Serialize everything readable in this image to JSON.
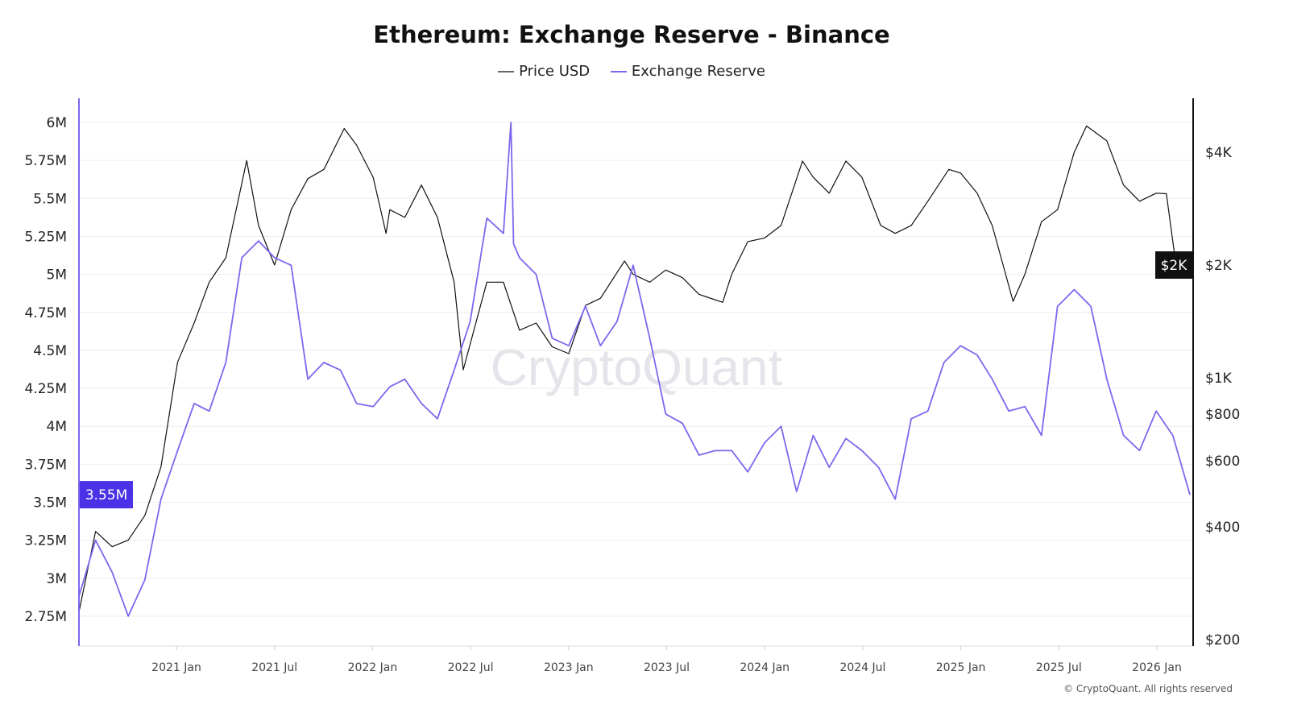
{
  "chart_data": {
    "type": "line",
    "title": "Ethereum: Exchange Reserve - Binance",
    "legend_position": "top-center",
    "grid": true,
    "x_tick_labels": [
      "2021 Jan",
      "2021 Jul",
      "2022 Jan",
      "2022 Jul",
      "2023 Jan",
      "2023 Jul",
      "2024 Jan",
      "2024 Jul",
      "2025 Jan",
      "2025 Jul",
      "2026 Jan"
    ],
    "x_range": [
      "2020-07-01",
      "2026-03-05"
    ],
    "y_left": {
      "ticks": [
        "6M",
        "5.75M",
        "5.5M",
        "5.25M",
        "5M",
        "4.75M",
        "4.5M",
        "4.25M",
        "4M",
        "3.75M",
        "3.5M",
        "3.25M",
        "3M",
        "2.75M"
      ],
      "range": [
        2.57,
        6.16
      ],
      "unit": "M"
    },
    "y_right": {
      "scale": "log",
      "ticks": [
        "$4K",
        "$2K",
        "$1K",
        "$800",
        "$600",
        "$400",
        "$200"
      ],
      "tick_values": [
        4000,
        2000,
        1000,
        800,
        600,
        400,
        200
      ]
    },
    "current_labels": {
      "reserve": "3.55M",
      "price": "$2K"
    },
    "series": [
      {
        "name": "Price USD",
        "axis": "right",
        "color": "#111111",
        "x": [
          "2020-07-01",
          "2020-08-01",
          "2020-09-01",
          "2020-10-01",
          "2020-11-01",
          "2020-12-01",
          "2021-01-01",
          "2021-02-01",
          "2021-03-01",
          "2021-04-01",
          "2021-05-10",
          "2021-06-01",
          "2021-07-01",
          "2021-08-01",
          "2021-09-01",
          "2021-10-01",
          "2021-11-08",
          "2021-12-01",
          "2022-01-01",
          "2022-01-25",
          "2022-02-01",
          "2022-03-01",
          "2022-04-01",
          "2022-05-01",
          "2022-06-01",
          "2022-06-18",
          "2022-08-01",
          "2022-09-01",
          "2022-10-01",
          "2022-11-01",
          "2022-12-01",
          "2023-01-01",
          "2023-02-01",
          "2023-03-01",
          "2023-04-15",
          "2023-05-01",
          "2023-06-01",
          "2023-07-01",
          "2023-08-01",
          "2023-09-01",
          "2023-10-15",
          "2023-11-01",
          "2023-12-01",
          "2024-01-01",
          "2024-02-01",
          "2024-03-12",
          "2024-04-01",
          "2024-05-01",
          "2024-06-01",
          "2024-07-01",
          "2024-08-05",
          "2024-09-01",
          "2024-10-01",
          "2024-11-01",
          "2024-12-10",
          "2025-01-01",
          "2025-02-01",
          "2025-03-01",
          "2025-04-09",
          "2025-05-01",
          "2025-06-01",
          "2025-07-01",
          "2025-08-01",
          "2025-08-24",
          "2025-10-01",
          "2025-11-01",
          "2025-12-01",
          "2026-01-01",
          "2026-01-20",
          "2026-02-05",
          "2026-03-05"
        ],
        "y": [
          237,
          389,
          354,
          369,
          429,
          578,
          1100,
          1400,
          1800,
          2090,
          3800,
          2550,
          2000,
          2810,
          3400,
          3600,
          4630,
          4180,
          3430,
          2430,
          2810,
          2680,
          3270,
          2680,
          1800,
          1050,
          1800,
          1800,
          1340,
          1400,
          1210,
          1160,
          1560,
          1630,
          2050,
          1890,
          1800,
          1940,
          1850,
          1670,
          1590,
          1890,
          2310,
          2360,
          2550,
          3790,
          3430,
          3110,
          3790,
          3430,
          2550,
          2430,
          2550,
          2960,
          3600,
          3520,
          3110,
          2550,
          1600,
          1890,
          2610,
          2810,
          4000,
          4700,
          4290,
          3270,
          2960,
          3110,
          3100,
          2100,
          1980
        ]
      },
      {
        "name": "Exchange Reserve",
        "axis": "left",
        "color": "#7b68ee",
        "x": [
          "2020-07-01",
          "2020-08-01",
          "2020-09-01",
          "2020-10-01",
          "2020-11-01",
          "2020-12-01",
          "2021-01-01",
          "2021-02-01",
          "2021-03-01",
          "2021-04-01",
          "2021-05-01",
          "2021-06-01",
          "2021-07-01",
          "2021-08-01",
          "2021-09-01",
          "2021-10-01",
          "2021-11-01",
          "2021-12-01",
          "2022-01-01",
          "2022-02-01",
          "2022-03-01",
          "2022-04-01",
          "2022-05-01",
          "2022-06-01",
          "2022-07-01",
          "2022-08-01",
          "2022-09-01",
          "2022-09-15",
          "2022-09-20",
          "2022-10-01",
          "2022-11-01",
          "2022-12-01",
          "2023-01-01",
          "2023-02-01",
          "2023-03-01",
          "2023-04-01",
          "2023-05-01",
          "2023-06-01",
          "2023-07-01",
          "2023-08-01",
          "2023-09-01",
          "2023-10-01",
          "2023-11-01",
          "2023-12-01",
          "2024-01-01",
          "2024-02-01",
          "2024-03-01",
          "2024-04-01",
          "2024-05-01",
          "2024-06-01",
          "2024-07-01",
          "2024-08-01",
          "2024-09-01",
          "2024-10-01",
          "2024-11-01",
          "2024-12-01",
          "2025-01-01",
          "2025-02-01",
          "2025-03-01",
          "2025-04-01",
          "2025-05-01",
          "2025-06-01",
          "2025-07-01",
          "2025-08-01",
          "2025-09-01",
          "2025-10-01",
          "2025-11-01",
          "2025-12-01",
          "2026-01-01",
          "2026-02-01",
          "2026-03-05"
        ],
        "y": [
          2.88,
          3.25,
          3.04,
          2.75,
          2.99,
          3.52,
          3.84,
          4.15,
          4.1,
          4.42,
          5.11,
          5.22,
          5.11,
          5.06,
          4.31,
          4.42,
          4.37,
          4.15,
          4.13,
          4.26,
          4.31,
          4.15,
          4.05,
          4.37,
          4.69,
          5.37,
          5.27,
          6.0,
          5.2,
          5.11,
          5.0,
          4.58,
          4.53,
          4.79,
          4.53,
          4.69,
          5.06,
          4.58,
          4.08,
          4.02,
          3.81,
          3.84,
          3.84,
          3.7,
          3.89,
          4.0,
          3.57,
          3.94,
          3.73,
          3.92,
          3.84,
          3.73,
          3.52,
          4.05,
          4.1,
          4.42,
          4.53,
          4.47,
          4.31,
          4.1,
          4.13,
          3.94,
          4.79,
          4.9,
          4.79,
          4.31,
          3.94,
          3.84,
          4.1,
          3.94,
          3.55
        ]
      }
    ]
  },
  "watermark": "CryptoQuant",
  "footer": "© CryptoQuant. All rights reserved"
}
